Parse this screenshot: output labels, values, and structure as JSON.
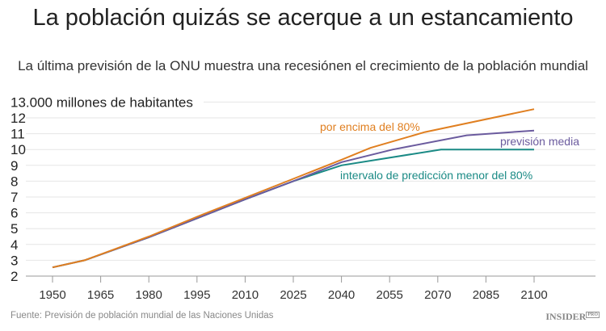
{
  "title": "La población quizás se acerque a un estancamiento",
  "subtitle": "La última previsión de la ONU muestra una recesiónen el crecimiento de la población mundial",
  "source": "Fuente: Previsión de población mundial de las Naciones Unidas",
  "logo": "INSIDER",
  "logo_sup": "PRO",
  "chart_data": {
    "type": "line",
    "title": "La población quizás se acerque a un estancamiento",
    "ylabel": "13.000 millones de habitantes",
    "xlabel": "",
    "x_ticks": [
      1950,
      1965,
      1980,
      1995,
      2010,
      2025,
      2040,
      2055,
      2070,
      2085,
      2100
    ],
    "y_ticks": [
      2,
      3,
      4,
      5,
      6,
      7,
      8,
      9,
      10,
      11,
      12
    ],
    "y_top_label": "13.000 millones de habitantes",
    "ylim": [
      2,
      13
    ],
    "xlim": [
      1950,
      2100
    ],
    "grid": true,
    "series": [
      {
        "name": "intervalo de predicción menor del 80%",
        "color": "#1a8a85",
        "x": [
          1950,
          1960,
          1980,
          1995,
          2010,
          2025,
          2040,
          2071,
          2100
        ],
        "y": [
          2.55,
          3.0,
          4.45,
          5.65,
          6.85,
          8.0,
          9.0,
          10.0,
          10.0
        ]
      },
      {
        "name": "previsión media",
        "color": "#6b5b9e",
        "x": [
          1950,
          1960,
          1980,
          1995,
          2010,
          2025,
          2040,
          2056,
          2079,
          2100
        ],
        "y": [
          2.55,
          3.0,
          4.45,
          5.65,
          6.85,
          8.0,
          9.2,
          10.0,
          10.9,
          11.2
        ]
      },
      {
        "name": "por encima del 80%",
        "color": "#e07f20",
        "x": [
          1950,
          1960,
          1980,
          1995,
          2010,
          2025,
          2040,
          2049,
          2066,
          2100
        ],
        "y": [
          2.55,
          3.0,
          4.5,
          5.75,
          6.95,
          8.15,
          9.35,
          10.1,
          11.1,
          12.55
        ]
      }
    ]
  }
}
